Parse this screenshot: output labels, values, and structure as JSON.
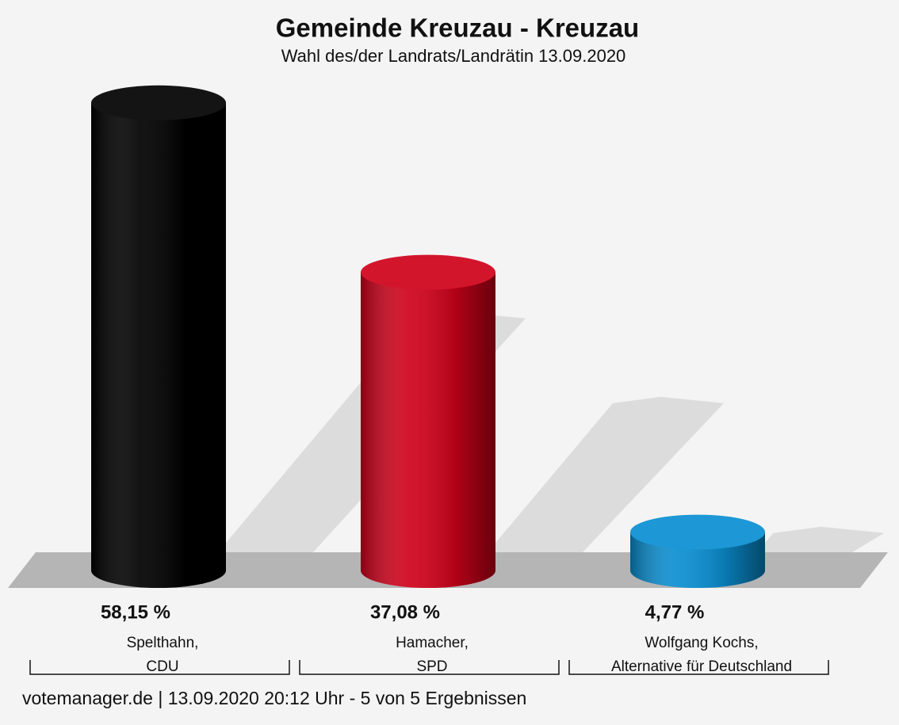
{
  "chart_data": {
    "type": "bar",
    "title": "Gemeinde Kreuzau - Kreuzau",
    "subtitle": "Wahl des/der Landrats/Landrätin 13.09.2020",
    "categories": [
      [
        "Spelthahn,",
        "CDU"
      ],
      [
        "Hamacher,",
        "SPD"
      ],
      [
        "Wolfgang Kochs,",
        "Alternative für Deutschland"
      ]
    ],
    "values": [
      58.15,
      37.08,
      4.77
    ],
    "value_labels": [
      "58,15 %",
      "37,08 %",
      "4,77 %"
    ],
    "colors": [
      "#000000",
      "#d0021b",
      "#0a8fd2"
    ],
    "footer": "votemanager.de | 13.09.2020 20:12 Uhr - 5 von 5 Ergebnissen"
  }
}
